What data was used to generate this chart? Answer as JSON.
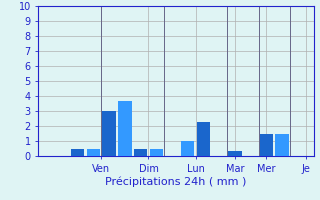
{
  "bars": [
    {
      "x": 2,
      "height": 0.0,
      "color": "#1a66cc"
    },
    {
      "x": 3,
      "height": 0.0,
      "color": "#3399ff"
    },
    {
      "x": 4,
      "height": 0.5,
      "color": "#1a66cc"
    },
    {
      "x": 5,
      "height": 0.5,
      "color": "#3399ff"
    },
    {
      "x": 6,
      "height": 3.0,
      "color": "#1a66cc"
    },
    {
      "x": 7,
      "height": 3.7,
      "color": "#3399ff"
    },
    {
      "x": 8,
      "height": 0.45,
      "color": "#1a66cc"
    },
    {
      "x": 9,
      "height": 0.45,
      "color": "#3399ff"
    },
    {
      "x": 10,
      "height": 0.0,
      "color": "#1a66cc"
    },
    {
      "x": 11,
      "height": 1.0,
      "color": "#3399ff"
    },
    {
      "x": 12,
      "height": 2.3,
      "color": "#1a66cc"
    },
    {
      "x": 13,
      "height": 0.0,
      "color": "#3399ff"
    },
    {
      "x": 14,
      "height": 0.35,
      "color": "#1a66cc"
    },
    {
      "x": 15,
      "height": 0.0,
      "color": "#3399ff"
    },
    {
      "x": 16,
      "height": 1.5,
      "color": "#1a66cc"
    },
    {
      "x": 17,
      "height": 1.5,
      "color": "#3399ff"
    },
    {
      "x": 18,
      "height": 0.0,
      "color": "#1a66cc"
    }
  ],
  "day_separators": [
    5.5,
    9.5,
    13.5,
    15.5,
    17.5
  ],
  "day_labels": [
    {
      "label": "Ven",
      "x": 5.5
    },
    {
      "label": "Dim",
      "x": 8.5
    },
    {
      "label": "Lun",
      "x": 11.5
    },
    {
      "label": "Mar",
      "x": 14.0
    },
    {
      "label": "Mer",
      "x": 16.0
    },
    {
      "label": "Je",
      "x": 18.5
    }
  ],
  "xlabel": "Précipitations 24h ( mm )",
  "ylim": [
    0,
    10
  ],
  "yticks": [
    0,
    1,
    2,
    3,
    4,
    5,
    6,
    7,
    8,
    9,
    10
  ],
  "xlim": [
    1.5,
    19
  ],
  "background_color": "#dff4f4",
  "grid_color": "#b0b0b0",
  "separator_color": "#666688",
  "label_color": "#2222cc",
  "xlabel_fontsize": 8,
  "tick_fontsize": 7
}
